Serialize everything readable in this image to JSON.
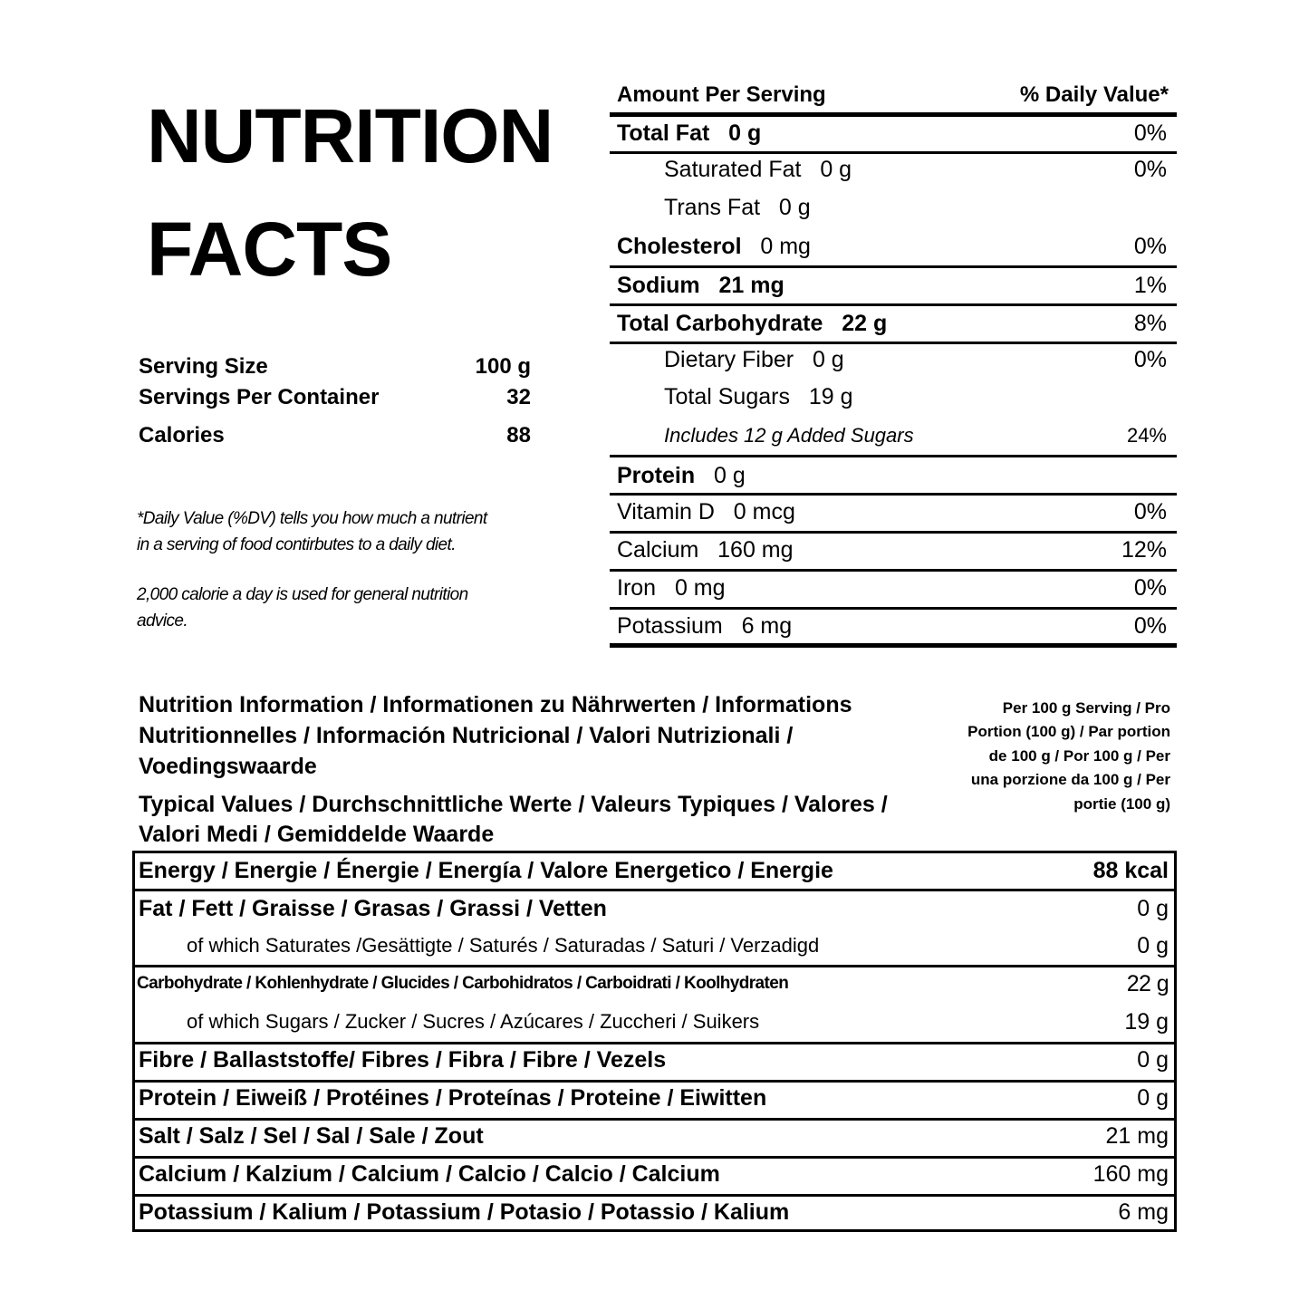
{
  "title": {
    "line1": "NUTRITION",
    "line2": "FACTS"
  },
  "serving": [
    {
      "label": "Serving Size",
      "value": "100 g"
    },
    {
      "label": "Servings Per Container",
      "value": "32"
    },
    {
      "label": "Calories",
      "value": "88"
    }
  ],
  "footnote": {
    "line1": "*Daily Value (%DV) tells you how much a nutrient",
    "line2": "in a serving of food contirbutes to a daily diet.",
    "line3": "2,000 calorie a day is used for general nutrition",
    "line4": "advice."
  },
  "facts": {
    "header_left": "Amount Per Serving",
    "header_right": "% Daily Value*",
    "rows": [
      {
        "name": "Total Fat",
        "amount": "0 g",
        "dv": "0%",
        "style": "bold"
      },
      {
        "name": "Saturated Fat",
        "amount": "0 g",
        "dv": "0%",
        "style": "indent"
      },
      {
        "name": "Trans Fat",
        "amount": "0 g",
        "dv": "",
        "style": "indent"
      },
      {
        "name": "Cholesterol",
        "amount": "0 mg",
        "dv": "0%",
        "style": "bold"
      },
      {
        "name": "Sodium",
        "amount": "21 mg",
        "dv": "1%",
        "style": "bold"
      },
      {
        "name": "Total Carbohydrate",
        "amount": "22 g",
        "dv": "8%",
        "style": "bold"
      },
      {
        "name": "Dietary Fiber",
        "amount": "0 g",
        "dv": "0%",
        "style": "indent"
      },
      {
        "name": "Total Sugars",
        "amount": "19 g",
        "dv": "",
        "style": "indent"
      },
      {
        "name": "Includes 12 g Added Sugars",
        "amount": "",
        "dv": "24%",
        "style": "italic"
      },
      {
        "name": "Protein",
        "amount": "0 g",
        "dv": "",
        "style": "bold"
      },
      {
        "name": "Vitamin D",
        "amount": "0 mcg",
        "dv": "0%",
        "style": "plain"
      },
      {
        "name": "Calcium",
        "amount": "160 mg",
        "dv": "12%",
        "style": "plain"
      },
      {
        "name": "Iron",
        "amount": "0 mg",
        "dv": "0%",
        "style": "plain"
      },
      {
        "name": "Potassium",
        "amount": "6 mg",
        "dv": "0%",
        "style": "plain"
      }
    ]
  },
  "multi": {
    "heading_lines": [
      "Nutrition Information / Informationen zu Nährwerten / Informations",
      "Nutritionnelles / Información Nutricional / Valori Nutrizionali /",
      "Voedingswaarde",
      "Typical Values / Durchschnittliche Werte / Valeurs Typiques / Valores /",
      "Valori Medi / Gemiddelde Waarde"
    ],
    "per_serving": "Per 100 g Serving / Pro Portion (100 g) / Par portion de 100 g / Por 100 g / Per una porzione da 100 g / Per portie (100 g)",
    "rows": [
      {
        "label": "Energy / Energie / Énergie / Energía / Valore Energetico / Energie",
        "value": "88 kcal",
        "style": "bold"
      },
      {
        "label": "Fat / Fett / Graisse / Grasas / Grassi / Vetten",
        "value": "0 g",
        "style": "bold"
      },
      {
        "label": "of which Saturates /Gesättigte / Saturés / Saturadas / Saturi / Verzadigd",
        "value": "0 g",
        "style": "indent"
      },
      {
        "label": "Carbohydrate / Kohlenhydrate / Glucides / Carbohidratos / Carboidrati / Koolhydraten",
        "value": "22 g",
        "style": "small"
      },
      {
        "label": "of which Sugars / Zucker / Sucres / Azúcares / Zuccheri / Suikers",
        "value": "19 g",
        "style": "indent"
      },
      {
        "label": "Fibre / Ballaststoffe/ Fibres / Fibra / Fibre / Vezels",
        "value": "0 g",
        "style": "bold"
      },
      {
        "label": "Protein / Eiweiß / Protéines / Proteínas / Proteine / Eiwitten",
        "value": "0 g",
        "style": "bold"
      },
      {
        "label": "Salt / Salz / Sel / Sal / Sale / Zout",
        "value": "21 mg",
        "style": "bold"
      },
      {
        "label": "Calcium / Kalzium / Calcium / Calcio / Calcio / Calcium",
        "value": "160 mg",
        "style": "bold"
      },
      {
        "label": "Potassium / Kalium / Potassium / Potasio / Potassio / Kalium",
        "value": "6 mg",
        "style": "bold"
      }
    ]
  }
}
